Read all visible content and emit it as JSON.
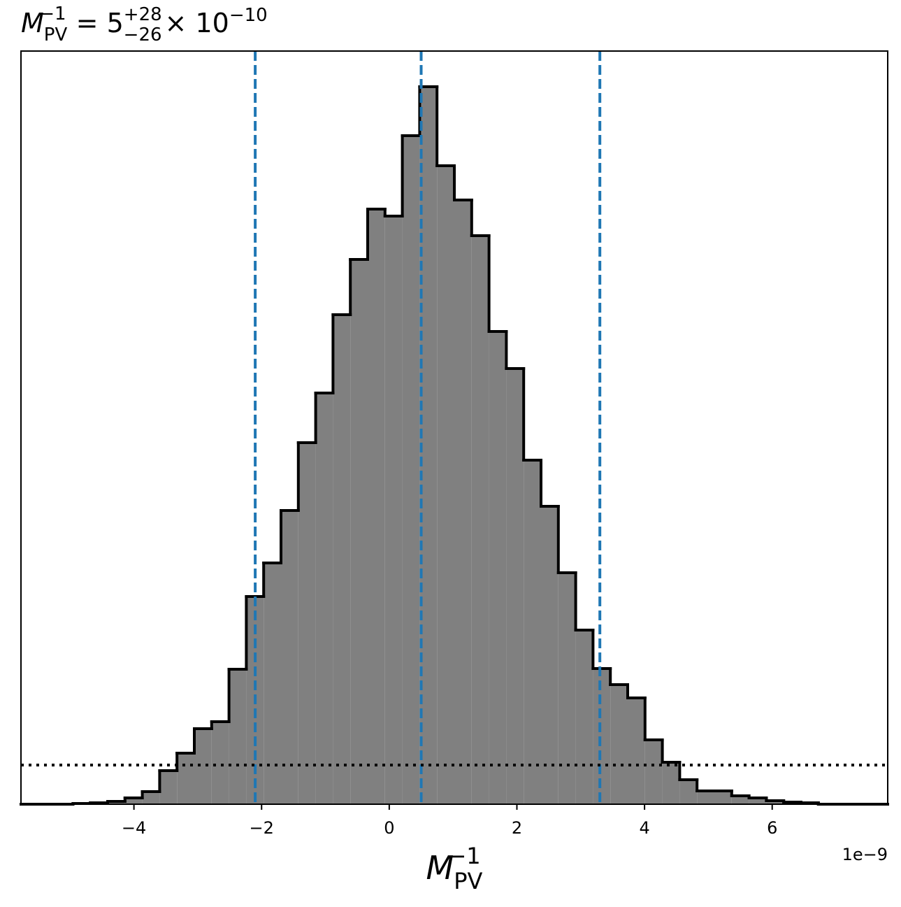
{
  "chart_data": {
    "type": "histogram",
    "title": {
      "symbol": "M",
      "sub": "PV",
      "sup": "−1",
      "eq": " = 5",
      "plus": "+28",
      "minus": "−26",
      "times": "× 10",
      "exp": "−10"
    },
    "xlabel": {
      "symbol": "M",
      "sub": "PV",
      "sup": "−1"
    },
    "x_offset_label": "1e−9",
    "bins": [
      -5.77,
      -5.4984,
      -5.2268,
      -4.9552,
      -4.6836,
      -4.412,
      -4.1404,
      -3.8688,
      -3.5972,
      -3.3256,
      -3.054,
      -2.7824,
      -2.5108,
      -2.2392,
      -1.9676,
      -1.696,
      -1.4244,
      -1.1528,
      -0.8812,
      -0.6096,
      -0.338,
      -0.0664,
      0.2052,
      0.4768,
      0.7484,
      1.02,
      1.2916,
      1.5632,
      1.8348,
      2.1064,
      2.378,
      2.6496,
      2.9212,
      3.1928,
      3.4644,
      3.736,
      4.0076,
      4.2792,
      4.5508,
      4.8224,
      5.094,
      5.3656,
      5.6372,
      5.9088,
      6.1804,
      6.452,
      6.7236,
      6.9952,
      7.2668,
      7.5384,
      7.81
    ],
    "counts": [
      0,
      0,
      0,
      1,
      2,
      4,
      9,
      18,
      48,
      73,
      108,
      118,
      193,
      297,
      345,
      420,
      517,
      588,
      700,
      779,
      851,
      841,
      956,
      1026,
      913,
      864,
      813,
      676,
      623,
      492,
      426,
      331,
      249,
      194,
      171,
      152,
      92,
      60,
      35,
      19,
      19,
      12,
      9,
      5,
      3,
      2,
      0,
      0,
      0,
      0
    ],
    "color": "#808080",
    "edge_color": "#000000",
    "quantile_lines": [
      -2.1,
      0.5,
      3.3
    ],
    "quantile_color": "#1f77b4",
    "threshold": 56,
    "xlim": [
      -5.77,
      7.81
    ],
    "ylim": [
      0,
      1077
    ],
    "xticks": [
      {
        "value": -4,
        "label": "−4"
      },
      {
        "value": -2,
        "label": "−2"
      },
      0,
      2,
      4,
      6
    ]
  }
}
